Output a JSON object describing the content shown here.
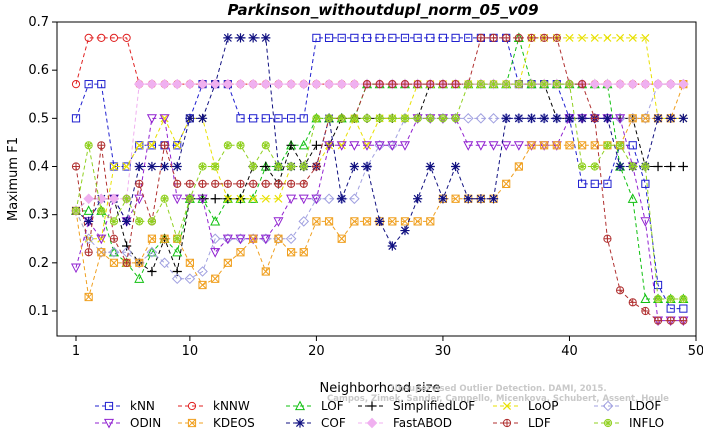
{
  "chart_data": {
    "type": "line",
    "title": "Parkinson_withoutdupl_norm_05_v09",
    "xlabel": "Neighborhood size",
    "ylabel": "Maximum F1",
    "xlim": [
      1,
      50
    ],
    "ylim": [
      0.08,
      0.7
    ],
    "xticks": [
      1,
      10,
      20,
      30,
      40,
      50
    ],
    "yticks": [
      0.1,
      0.2,
      0.3,
      0.4,
      0.5,
      0.6,
      0.7
    ],
    "grid": false,
    "legend_position": "bottom",
    "watermark": [
      "Unsupervised Outlier Detection. DAMI, 2015.",
      "Campos, Zimek, Sander, Campello, Micenkova, Schubert, Assent, Houle"
    ],
    "x": [
      1,
      2,
      3,
      4,
      5,
      6,
      7,
      8,
      9,
      10,
      11,
      12,
      13,
      14,
      15,
      16,
      17,
      18,
      19,
      20,
      21,
      22,
      23,
      24,
      25,
      26,
      27,
      28,
      29,
      30,
      31,
      32,
      33,
      34,
      35,
      36,
      37,
      38,
      39,
      40,
      41,
      42,
      43,
      44,
      45,
      46,
      47,
      48,
      49
    ],
    "series": [
      {
        "name": "kNN",
        "color": "#1f1fcf",
        "marker": "square",
        "values": [
          0.5,
          0.571,
          0.571,
          0.4,
          0.4,
          0.444,
          0.444,
          0.444,
          0.444,
          0.5,
          0.571,
          0.571,
          0.571,
          0.5,
          0.5,
          0.5,
          0.5,
          0.5,
          0.5,
          0.667,
          0.667,
          0.667,
          0.667,
          0.667,
          0.667,
          0.667,
          0.667,
          0.667,
          0.667,
          0.667,
          0.667,
          0.667,
          0.667,
          0.667,
          0.667,
          0.571,
          0.571,
          0.571,
          0.571,
          0.5,
          0.364,
          0.364,
          0.364,
          0.444,
          0.444,
          0.364,
          0.154,
          0.105,
          0.105
        ]
      },
      {
        "name": "kNNW",
        "color": "#e02020",
        "marker": "circle",
        "values": [
          0.571,
          0.667,
          0.667,
          0.667,
          0.667,
          0.571,
          0.571,
          0.571,
          0.571,
          0.571,
          0.571,
          0.571,
          0.571,
          0.571,
          0.571,
          0.571,
          0.571,
          0.571,
          0.571,
          0.571,
          0.571,
          0.571,
          0.571,
          0.571,
          0.571,
          0.571,
          0.571,
          0.571,
          0.571,
          0.571,
          0.571,
          0.571,
          0.571,
          0.571,
          0.571,
          0.571,
          0.571,
          0.571,
          0.571,
          0.571,
          0.571,
          0.571,
          0.571,
          0.571,
          0.571,
          0.571,
          0.571,
          0.571,
          0.571
        ]
      },
      {
        "name": "LOF",
        "color": "#10c010",
        "marker": "triangle",
        "values": [
          0.308,
          0.308,
          0.308,
          0.222,
          0.2,
          0.167,
          0.222,
          0.25,
          0.222,
          0.333,
          0.333,
          0.286,
          0.333,
          0.333,
          0.333,
          0.4,
          0.4,
          0.444,
          0.444,
          0.5,
          0.5,
          0.5,
          0.5,
          0.571,
          0.571,
          0.571,
          0.571,
          0.571,
          0.571,
          0.571,
          0.571,
          0.571,
          0.571,
          0.571,
          0.571,
          0.667,
          0.571,
          0.571,
          0.571,
          0.571,
          0.571,
          0.571,
          0.571,
          0.4,
          0.333,
          0.125,
          0.125,
          0.125,
          0.125
        ]
      },
      {
        "name": "SimplifiedLOF",
        "color": "#000000",
        "marker": "plus",
        "values": [
          0.308,
          0.333,
          0.333,
          0.333,
          0.235,
          0.2,
          0.182,
          0.25,
          0.182,
          0.333,
          0.333,
          0.333,
          0.333,
          0.333,
          0.4,
          0.4,
          0.364,
          0.444,
          0.4,
          0.444,
          0.444,
          0.5,
          0.5,
          0.5,
          0.5,
          0.5,
          0.5,
          0.5,
          0.571,
          0.571,
          0.571,
          0.571,
          0.571,
          0.571,
          0.571,
          0.571,
          0.571,
          0.571,
          0.5,
          0.5,
          0.5,
          0.5,
          0.5,
          0.5,
          0.5,
          0.4,
          0.4,
          0.4,
          0.4
        ]
      },
      {
        "name": "LoOP",
        "color": "#e8e000",
        "marker": "cross",
        "values": [
          0.308,
          0.25,
          0.25,
          0.4,
          0.4,
          0.444,
          0.444,
          0.5,
          0.444,
          0.5,
          0.5,
          0.4,
          0.333,
          0.333,
          0.333,
          0.333,
          0.333,
          0.4,
          0.4,
          0.4,
          0.444,
          0.444,
          0.5,
          0.444,
          0.5,
          0.5,
          0.5,
          0.571,
          0.571,
          0.571,
          0.571,
          0.571,
          0.571,
          0.571,
          0.571,
          0.571,
          0.667,
          0.667,
          0.667,
          0.667,
          0.667,
          0.667,
          0.667,
          0.667,
          0.667,
          0.667,
          0.5,
          0.5,
          0.5
        ]
      },
      {
        "name": "LDOF",
        "color": "#a0a0e0",
        "marker": "diamond",
        "values": [
          0.308,
          0.25,
          0.222,
          0.222,
          0.222,
          0.2,
          0.222,
          0.2,
          0.167,
          0.167,
          0.182,
          0.25,
          0.25,
          0.25,
          0.25,
          0.25,
          0.25,
          0.25,
          0.286,
          0.333,
          0.333,
          0.333,
          0.333,
          0.4,
          0.444,
          0.444,
          0.5,
          0.5,
          0.5,
          0.5,
          0.5,
          0.5,
          0.5,
          0.5,
          0.5,
          0.5,
          0.5,
          0.5,
          0.5,
          0.5,
          0.5,
          0.5,
          0.5,
          0.5,
          0.5,
          0.5,
          0.571,
          0.571,
          0.571
        ]
      },
      {
        "name": "ODIN",
        "color": "#9020d0",
        "marker": "triangle-down",
        "values": [
          0.19,
          0.286,
          0.25,
          0.333,
          0.286,
          0.333,
          0.5,
          0.5,
          0.333,
          0.333,
          0.333,
          0.222,
          0.25,
          0.25,
          0.25,
          0.25,
          0.286,
          0.333,
          0.333,
          0.333,
          0.444,
          0.444,
          0.444,
          0.444,
          0.444,
          0.444,
          0.444,
          0.5,
          0.5,
          0.5,
          0.5,
          0.444,
          0.444,
          0.444,
          0.444,
          0.444,
          0.444,
          0.444,
          0.444,
          0.5,
          0.5,
          0.5,
          0.5,
          0.5,
          0.4,
          0.286,
          0.08,
          0.08,
          0.08
        ]
      },
      {
        "name": "KDEOS",
        "color": "#f0a020",
        "marker": "boxed-cross",
        "values": [
          0.308,
          0.129,
          0.222,
          0.2,
          0.2,
          0.2,
          0.25,
          0.25,
          0.25,
          0.2,
          0.154,
          0.167,
          0.2,
          0.222,
          0.25,
          0.182,
          0.25,
          0.222,
          0.222,
          0.286,
          0.286,
          0.25,
          0.286,
          0.286,
          0.286,
          0.286,
          0.286,
          0.286,
          0.286,
          0.333,
          0.333,
          0.333,
          0.333,
          0.333,
          0.364,
          0.4,
          0.444,
          0.444,
          0.444,
          0.444,
          0.444,
          0.444,
          0.444,
          0.444,
          0.5,
          0.5,
          0.5,
          0.5,
          0.571
        ]
      },
      {
        "name": "COF",
        "color": "#101080",
        "marker": "star",
        "values": [
          0.308,
          0.286,
          0.333,
          0.333,
          0.286,
          0.4,
          0.4,
          0.4,
          0.4,
          0.5,
          0.5,
          0.571,
          0.667,
          0.667,
          0.667,
          0.667,
          0.4,
          0.4,
          0.4,
          0.4,
          0.5,
          0.333,
          0.4,
          0.4,
          0.286,
          0.235,
          0.267,
          0.333,
          0.4,
          0.333,
          0.4,
          0.333,
          0.333,
          0.333,
          0.5,
          0.5,
          0.5,
          0.5,
          0.5,
          0.5,
          0.5,
          0.5,
          0.5,
          0.4,
          0.4,
          0.4,
          0.5,
          0.5,
          0.5
        ]
      },
      {
        "name": "FastABOD",
        "color": "#f0b0f0",
        "marker": "diamond-filled",
        "values": [
          0.308,
          0.333,
          0.333,
          0.333,
          0.333,
          0.571,
          0.571,
          0.571,
          0.571,
          0.571,
          0.571,
          0.571,
          0.571,
          0.571,
          0.571,
          0.571,
          0.571,
          0.571,
          0.571,
          0.571,
          0.571,
          0.571,
          0.571,
          0.571,
          0.571,
          0.571,
          0.571,
          0.571,
          0.571,
          0.571,
          0.571,
          0.571,
          0.571,
          0.571,
          0.571,
          0.571,
          0.571,
          0.571,
          0.571,
          0.571,
          0.571,
          0.571,
          0.571,
          0.571,
          0.571,
          0.571,
          0.571,
          0.571,
          0.571
        ]
      },
      {
        "name": "LDF",
        "color": "#b03030",
        "marker": "circle-plus",
        "values": [
          0.4,
          0.222,
          0.444,
          0.25,
          0.2,
          0.364,
          0.286,
          0.444,
          0.364,
          0.364,
          0.364,
          0.364,
          0.364,
          0.364,
          0.364,
          0.364,
          0.364,
          0.364,
          0.364,
          0.4,
          0.5,
          0.5,
          0.5,
          0.571,
          0.571,
          0.571,
          0.571,
          0.571,
          0.571,
          0.571,
          0.571,
          0.571,
          0.667,
          0.667,
          0.667,
          0.667,
          0.667,
          0.667,
          0.667,
          0.571,
          0.571,
          0.5,
          0.25,
          0.143,
          0.118,
          0.1,
          0.08,
          0.08,
          0.08
        ]
      },
      {
        "name": "INFLO",
        "color": "#90d020",
        "marker": "star-circle",
        "values": [
          0.308,
          0.444,
          0.308,
          0.286,
          0.333,
          0.286,
          0.286,
          0.333,
          0.25,
          0.333,
          0.4,
          0.4,
          0.444,
          0.444,
          0.4,
          0.444,
          0.4,
          0.4,
          0.4,
          0.5,
          0.5,
          0.5,
          0.5,
          0.5,
          0.5,
          0.5,
          0.5,
          0.5,
          0.5,
          0.5,
          0.5,
          0.571,
          0.571,
          0.571,
          0.571,
          0.571,
          0.571,
          0.571,
          0.571,
          0.571,
          0.4,
          0.4,
          0.444,
          0.444,
          0.4,
          0.4,
          0.125,
          0.125,
          0.125
        ]
      }
    ]
  }
}
